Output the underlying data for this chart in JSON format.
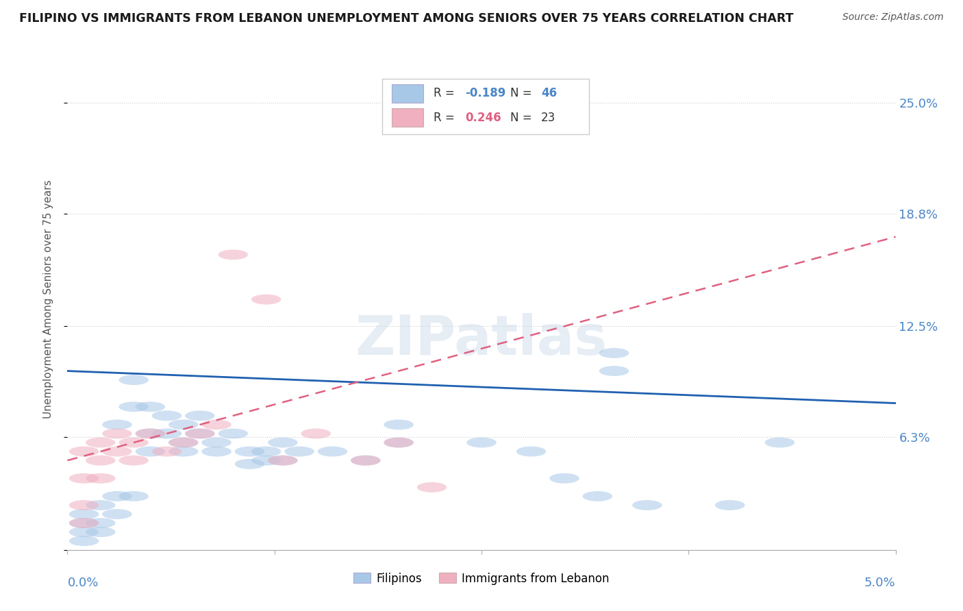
{
  "title": "FILIPINO VS IMMIGRANTS FROM LEBANON UNEMPLOYMENT AMONG SENIORS OVER 75 YEARS CORRELATION CHART",
  "source": "Source: ZipAtlas.com",
  "ylabel": "Unemployment Among Seniors over 75 years",
  "yticks": [
    0.0,
    0.063,
    0.125,
    0.188,
    0.25
  ],
  "ytick_labels": [
    "",
    "6.3%",
    "12.5%",
    "18.8%",
    "25.0%"
  ],
  "xlim": [
    0.0,
    0.05
  ],
  "ylim": [
    0.0,
    0.28
  ],
  "blue_R": -0.189,
  "blue_N": 46,
  "pink_R": 0.246,
  "pink_N": 23,
  "blue_color": "#a8c8e8",
  "pink_color": "#f0b0c0",
  "blue_line_color": "#2060b0",
  "pink_line_color": "#e06080",
  "legend_label_blue": "Filipinos",
  "legend_label_pink": "Immigrants from Lebanon",
  "watermark": "ZIPatlas",
  "blue_dots": [
    [
      0.001,
      0.02
    ],
    [
      0.001,
      0.015
    ],
    [
      0.001,
      0.01
    ],
    [
      0.001,
      0.005
    ],
    [
      0.002,
      0.025
    ],
    [
      0.002,
      0.015
    ],
    [
      0.002,
      0.01
    ],
    [
      0.003,
      0.07
    ],
    [
      0.003,
      0.03
    ],
    [
      0.003,
      0.02
    ],
    [
      0.004,
      0.095
    ],
    [
      0.004,
      0.08
    ],
    [
      0.004,
      0.03
    ],
    [
      0.005,
      0.08
    ],
    [
      0.005,
      0.065
    ],
    [
      0.005,
      0.055
    ],
    [
      0.006,
      0.075
    ],
    [
      0.006,
      0.065
    ],
    [
      0.007,
      0.07
    ],
    [
      0.007,
      0.06
    ],
    [
      0.007,
      0.055
    ],
    [
      0.008,
      0.075
    ],
    [
      0.008,
      0.065
    ],
    [
      0.009,
      0.06
    ],
    [
      0.009,
      0.055
    ],
    [
      0.01,
      0.065
    ],
    [
      0.011,
      0.055
    ],
    [
      0.011,
      0.048
    ],
    [
      0.012,
      0.055
    ],
    [
      0.012,
      0.05
    ],
    [
      0.013,
      0.06
    ],
    [
      0.013,
      0.05
    ],
    [
      0.014,
      0.055
    ],
    [
      0.016,
      0.055
    ],
    [
      0.018,
      0.05
    ],
    [
      0.02,
      0.07
    ],
    [
      0.02,
      0.06
    ],
    [
      0.025,
      0.06
    ],
    [
      0.028,
      0.055
    ],
    [
      0.03,
      0.04
    ],
    [
      0.032,
      0.03
    ],
    [
      0.033,
      0.11
    ],
    [
      0.033,
      0.1
    ],
    [
      0.035,
      0.025
    ],
    [
      0.04,
      0.025
    ],
    [
      0.043,
      0.06
    ]
  ],
  "pink_dots": [
    [
      0.001,
      0.055
    ],
    [
      0.001,
      0.04
    ],
    [
      0.001,
      0.025
    ],
    [
      0.001,
      0.015
    ],
    [
      0.002,
      0.06
    ],
    [
      0.002,
      0.05
    ],
    [
      0.002,
      0.04
    ],
    [
      0.003,
      0.065
    ],
    [
      0.003,
      0.055
    ],
    [
      0.004,
      0.06
    ],
    [
      0.004,
      0.05
    ],
    [
      0.005,
      0.065
    ],
    [
      0.006,
      0.055
    ],
    [
      0.007,
      0.06
    ],
    [
      0.008,
      0.065
    ],
    [
      0.009,
      0.07
    ],
    [
      0.01,
      0.165
    ],
    [
      0.012,
      0.14
    ],
    [
      0.013,
      0.05
    ],
    [
      0.015,
      0.065
    ],
    [
      0.018,
      0.05
    ],
    [
      0.02,
      0.06
    ],
    [
      0.022,
      0.035
    ]
  ]
}
